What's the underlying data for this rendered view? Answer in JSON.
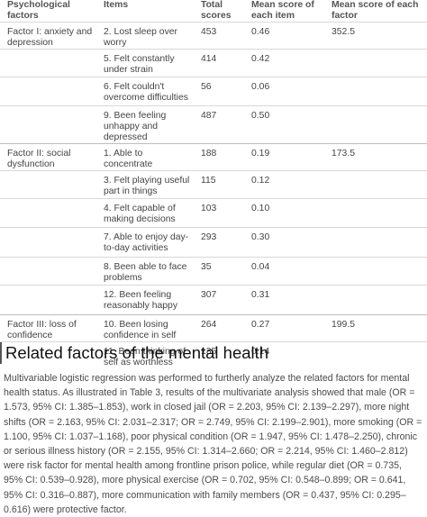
{
  "table": {
    "headers": {
      "factor": "Psychological factors",
      "items": "Items",
      "total": "Total scores",
      "mean_item": "Mean score of each item",
      "mean_factor": "Mean score of each factor"
    },
    "rows": [
      {
        "factor": "Factor I: anxiety and depression",
        "item": "2. Lost sleep over worry",
        "total": "453",
        "mean_item": "0.46",
        "mean_factor": "352.5"
      },
      {
        "factor": "",
        "item": "5. Felt constantly under strain",
        "total": "414",
        "mean_item": "0.42",
        "mean_factor": ""
      },
      {
        "factor": "",
        "item": "6. Felt couldn't overcome difficulties",
        "total": "56",
        "mean_item": "0.06",
        "mean_factor": ""
      },
      {
        "factor": "",
        "item": "9. Been feeling unhappy and depressed",
        "total": "487",
        "mean_item": "0.50",
        "mean_factor": ""
      },
      {
        "factor": "Factor II: social dysfunction",
        "item": "1. Able to concentrate",
        "total": "188",
        "mean_item": "0.19",
        "mean_factor": "173.5"
      },
      {
        "factor": "",
        "item": "3. Felt playing useful part in things",
        "total": "115",
        "mean_item": "0.12",
        "mean_factor": ""
      },
      {
        "factor": "",
        "item": "4. Felt capable of making decisions",
        "total": "103",
        "mean_item": "0.10",
        "mean_factor": ""
      },
      {
        "factor": "",
        "item": "7. Able to enjoy day-to-day activities",
        "total": "293",
        "mean_item": "0.30",
        "mean_factor": ""
      },
      {
        "factor": "",
        "item": "8. Been able to face problems",
        "total": "35",
        "mean_item": "0.04",
        "mean_factor": ""
      },
      {
        "factor": "",
        "item": "12. Been feeling reasonably happy",
        "total": "307",
        "mean_item": "0.31",
        "mean_factor": ""
      },
      {
        "factor": "Factor III: loss of confidence",
        "item": "10. Been losing confidence in self",
        "total": "264",
        "mean_item": "0.27",
        "mean_factor": "199.5"
      },
      {
        "factor": "",
        "item": "11. Been thinking of self as worthless",
        "total": "135",
        "mean_item": "0.14",
        "mean_factor": ""
      }
    ]
  },
  "section": {
    "heading": "Related factors of the mental health",
    "paragraph": "Multivariable logistic regression was performed to furtherly analyze the related factors for mental health status. As illustrated in Table 3, results of the multivariate analysis showed that male (OR = 1.573, 95% CI: 1.385–1.853), work in closed jail (OR = 2.203, 95% CI: 2.139–2.297), more night shifts (OR = 2.163, 95% CI: 2.031–2.317; OR = 2.749, 95% CI: 2.199–2.901), more smoking (OR = 1.100, 95% CI: 1.037–1.168), poor physical condition (OR = 1.947, 95% CI: 1.478–2.250), chronic or serious illness history (OR = 2.155, 95% CI: 1.314–2.660; OR = 2.214, 95% CI: 1.460–2.812) were risk factor for mental health among frontline prison police, while regular diet (OR = 0.735, 95% CI: 0.539–0.928), more physical exercise (OR = 0.702, 95% CI: 0.548–0.899; OR = 0.641, 95% CI: 0.316–0.887), more communication with family members (OR = 0.437, 95% CI: 0.295–0.616) were protective factor."
  }
}
